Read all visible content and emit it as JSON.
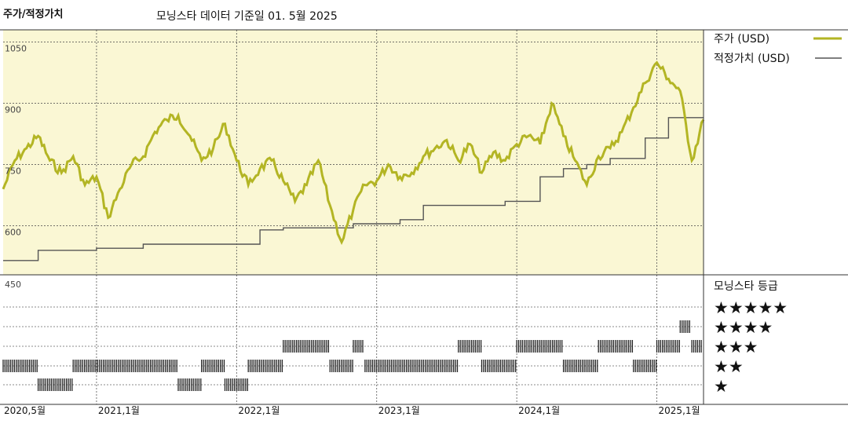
{
  "chart_data": {
    "type": "line",
    "title": "주가/적정가치",
    "subtitle": "모닝스타 데이터 기준일 01. 5월 2025",
    "y_ticks": [
      "1050",
      "900",
      "750",
      "600",
      "450"
    ],
    "ylim": [
      450,
      1080
    ],
    "x_ticks": [
      "2020,5월",
      "2021,1월",
      "2022,1월",
      "2023,1월",
      "2024,1월",
      "2025,1월"
    ],
    "x_tick_dates": [
      "2020-05",
      "2021-01",
      "2022-01",
      "2023-01",
      "2024-01",
      "2025-01"
    ],
    "xlim": [
      "2020-05",
      "2025-05"
    ],
    "grid": true,
    "legend_position": "right",
    "colors": {
      "price": "#b3b524",
      "fair_value": "#555555",
      "plot_bg": "#faf7d4",
      "rating_bar": "#222222"
    },
    "series": [
      {
        "name": "주가 (USD)",
        "x": [
          "2020-05",
          "2020-06",
          "2020-07",
          "2020-08",
          "2020-09",
          "2020-10",
          "2020-11",
          "2020-12",
          "2021-01",
          "2021-02",
          "2021-03",
          "2021-04",
          "2021-05",
          "2021-06",
          "2021-07",
          "2021-08",
          "2021-09",
          "2021-10",
          "2021-11",
          "2021-12",
          "2022-01",
          "2022-02",
          "2022-03",
          "2022-04",
          "2022-05",
          "2022-06",
          "2022-07",
          "2022-08",
          "2022-09",
          "2022-10",
          "2022-11",
          "2022-12",
          "2023-01",
          "2023-02",
          "2023-03",
          "2023-04",
          "2023-05",
          "2023-06",
          "2023-07",
          "2023-08",
          "2023-09",
          "2023-10",
          "2023-11",
          "2023-12",
          "2024-01",
          "2024-02",
          "2024-03",
          "2024-04",
          "2024-05",
          "2024-06",
          "2024-07",
          "2024-08",
          "2024-09",
          "2024-10",
          "2024-11",
          "2024-12",
          "2025-01",
          "2025-02",
          "2025-03",
          "2025-04",
          "2025-05"
        ],
        "values": [
          690,
          760,
          790,
          820,
          760,
          730,
          770,
          700,
          720,
          620,
          690,
          750,
          770,
          830,
          860,
          870,
          820,
          760,
          790,
          850,
          760,
          700,
          740,
          760,
          710,
          660,
          700,
          760,
          650,
          560,
          640,
          700,
          710,
          750,
          720,
          730,
          770,
          790,
          810,
          760,
          800,
          730,
          780,
          760,
          800,
          820,
          800,
          900,
          820,
          760,
          700,
          770,
          790,
          830,
          890,
          950,
          1000,
          960,
          930,
          760,
          860
        ]
      },
      {
        "name": "적정가치 (USD)",
        "x": [
          "2020-05",
          "2020-06",
          "2020-08",
          "2020-12",
          "2021-01",
          "2021-03",
          "2021-05",
          "2021-09",
          "2022-01",
          "2022-03",
          "2022-04",
          "2022-05",
          "2022-10",
          "2022-11",
          "2023-01",
          "2023-03",
          "2023-05",
          "2023-09",
          "2023-12",
          "2024-01",
          "2024-03",
          "2024-05",
          "2024-07",
          "2024-09",
          "2024-12",
          "2025-02",
          "2025-05"
        ],
        "values": [
          515,
          515,
          540,
          540,
          545,
          545,
          555,
          555,
          555,
          590,
          590,
          595,
          595,
          605,
          605,
          615,
          650,
          650,
          660,
          660,
          720,
          740,
          750,
          765,
          815,
          865,
          865
        ]
      }
    ],
    "rating_legend_title": "모닝스타 등급",
    "rating_levels": [
      "★★★★★",
      "★★★★",
      "★★★",
      "★★",
      "★"
    ],
    "ratings": [
      {
        "from": "2020-05",
        "to": "2020-08",
        "stars": 2
      },
      {
        "from": "2020-08",
        "to": "2020-11",
        "stars": 1
      },
      {
        "from": "2020-11",
        "to": "2021-08",
        "stars": 2
      },
      {
        "from": "2021-08",
        "to": "2021-10",
        "stars": 1
      },
      {
        "from": "2021-10",
        "to": "2021-12",
        "stars": 2
      },
      {
        "from": "2021-12",
        "to": "2022-02",
        "stars": 1
      },
      {
        "from": "2022-02",
        "to": "2022-05",
        "stars": 2
      },
      {
        "from": "2022-05",
        "to": "2022-09",
        "stars": 3
      },
      {
        "from": "2022-09",
        "to": "2022-11",
        "stars": 2
      },
      {
        "from": "2022-11",
        "to": "2022-12",
        "stars": 3
      },
      {
        "from": "2022-12",
        "to": "2023-08",
        "stars": 2
      },
      {
        "from": "2023-08",
        "to": "2023-10",
        "stars": 3
      },
      {
        "from": "2023-10",
        "to": "2024-01",
        "stars": 2
      },
      {
        "from": "2024-01",
        "to": "2024-05",
        "stars": 3
      },
      {
        "from": "2024-05",
        "to": "2024-08",
        "stars": 2
      },
      {
        "from": "2024-08",
        "to": "2024-11",
        "stars": 3
      },
      {
        "from": "2024-11",
        "to": "2025-01",
        "stars": 2
      },
      {
        "from": "2025-01",
        "to": "2025-03",
        "stars": 3
      },
      {
        "from": "2025-03",
        "to": "2025-04",
        "stars": 4
      },
      {
        "from": "2025-04",
        "to": "2025-05",
        "stars": 3
      }
    ]
  }
}
